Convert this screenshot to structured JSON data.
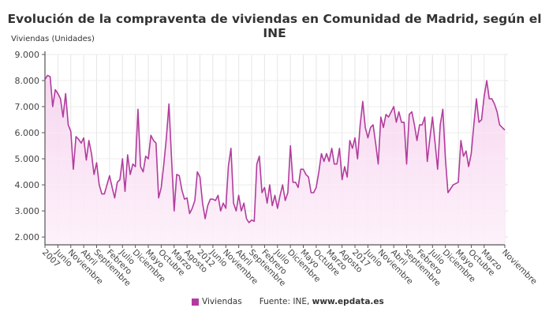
{
  "chart_data": {
    "type": "line",
    "title": "Evolución de la compraventa de viviendas en Comunidad de Madrid, según el INE",
    "ylabel": "Viviendas (Unidades)",
    "xlabel": "",
    "ylim": [
      1700,
      9000
    ],
    "yticks": [
      2000,
      3000,
      4000,
      5000,
      6000,
      7000,
      8000,
      9000
    ],
    "ytick_labels": [
      "2.000",
      "3.000",
      "4.000",
      "5.000",
      "6.000",
      "7.000",
      "8.000",
      "9.000"
    ],
    "x_start": "Enero 2007",
    "x_end": "Noviembre 2021",
    "xtick_labels": [
      "2007",
      "Junio",
      "Noviembre",
      "Abril",
      "Septiembre",
      "Febrero",
      "Julio",
      "Diciembre",
      "Mayo",
      "Octubre",
      "Marzo",
      "Agosto",
      "2012",
      "Junio",
      "Noviembre",
      "Abril",
      "Septiembre",
      "Febrero",
      "Julio",
      "Diciembre",
      "Mayo",
      "Octubre",
      "Marzo",
      "Agosto",
      "2017",
      "Junio",
      "Noviembre",
      "Abril",
      "Septiembre",
      "Febrero",
      "Julio",
      "Diciembre",
      "Mayo",
      "Octubre",
      "Marzo",
      "Noviembre"
    ],
    "grid": true,
    "legend_position": "bottom",
    "series": [
      {
        "name": "Viviendas",
        "color": "#b23c9e",
        "values": [
          8050,
          8200,
          8150,
          7000,
          7650,
          7500,
          7300,
          6600,
          7500,
          6300,
          6050,
          4600,
          5850,
          5750,
          5600,
          5800,
          4950,
          5700,
          5200,
          4400,
          4850,
          4000,
          3650,
          3650,
          4000,
          4350,
          3900,
          3500,
          4100,
          4200,
          5000,
          3750,
          5150,
          4400,
          4800,
          4700,
          6900,
          4700,
          4500,
          5100,
          5000,
          5900,
          5700,
          5600,
          3500,
          3900,
          4800,
          5800,
          7100,
          5000,
          3000,
          4400,
          4350,
          3800,
          3450,
          3500,
          2900,
          3100,
          3400,
          4500,
          4300,
          3300,
          2700,
          3200,
          3450,
          3450,
          3400,
          3600,
          3000,
          3300,
          3100,
          4700,
          5400,
          3300,
          3000,
          3600,
          3000,
          3300,
          2700,
          2550,
          2650,
          2600,
          4800,
          5100,
          3700,
          3900,
          3300,
          4000,
          3200,
          3600,
          3100,
          3600,
          4000,
          3400,
          3700,
          5500,
          4100,
          4100,
          3900,
          4600,
          4600,
          4400,
          4300,
          3700,
          3700,
          3900,
          4500,
          5200,
          4900,
          5200,
          4900,
          5400,
          4800,
          4800,
          5400,
          4200,
          4700,
          4300,
          5700,
          5400,
          5800,
          5000,
          6300,
          7200,
          6200,
          5800,
          6200,
          6300,
          5600,
          4800,
          6600,
          6200,
          6700,
          6600,
          6800,
          7000,
          6400,
          6800,
          6400,
          6400,
          4800,
          6700,
          6800,
          6300,
          5700,
          6300,
          6300,
          6600,
          4900,
          5800,
          6600,
          5600,
          4600,
          6300,
          6900,
          5000,
          3700,
          3850,
          4000,
          4050,
          4100,
          5700,
          5100,
          5300,
          4700,
          5200,
          6300,
          7300,
          6400,
          6500,
          7400,
          8000,
          7300,
          7300,
          7100,
          6800,
          6300,
          6200,
          6100
        ]
      }
    ],
    "source": "Fuente: INE, www.epdata.es",
    "source_prefix": "Fuente: INE, ",
    "source_site": "www.epdata.es"
  }
}
